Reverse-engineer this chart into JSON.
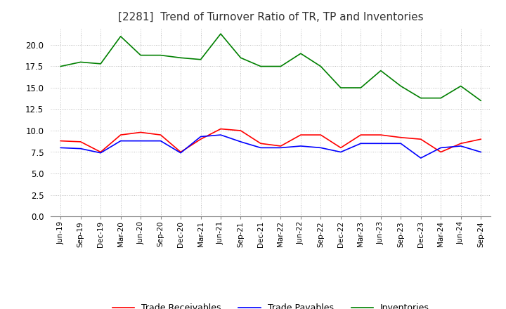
{
  "title": "[2281]  Trend of Turnover Ratio of TR, TP and Inventories",
  "yticks": [
    0.0,
    2.5,
    5.0,
    7.5,
    10.0,
    12.5,
    15.0,
    17.5,
    20.0
  ],
  "ylim": [
    0,
    22.0
  ],
  "legend_labels": [
    "Trade Receivables",
    "Trade Payables",
    "Inventories"
  ],
  "line_colors": [
    "#ff0000",
    "#0000ff",
    "#008000"
  ],
  "background_color": "#ffffff",
  "grid_color": "#aaaaaa",
  "dates": [
    "Jun-19",
    "Sep-19",
    "Dec-19",
    "Mar-20",
    "Jun-20",
    "Sep-20",
    "Dec-20",
    "Mar-21",
    "Jun-21",
    "Sep-21",
    "Dec-21",
    "Mar-22",
    "Jun-22",
    "Sep-22",
    "Dec-22",
    "Mar-23",
    "Jun-23",
    "Sep-23",
    "Dec-23",
    "Mar-24",
    "Jun-24",
    "Sep-24"
  ],
  "trade_receivables": [
    8.8,
    8.7,
    7.5,
    9.5,
    9.8,
    9.5,
    7.5,
    9.0,
    10.2,
    10.0,
    8.5,
    8.2,
    9.5,
    9.5,
    8.0,
    9.5,
    9.5,
    9.2,
    9.0,
    7.5,
    8.5,
    9.0
  ],
  "trade_payables": [
    8.0,
    7.9,
    7.4,
    8.8,
    8.8,
    8.8,
    7.4,
    9.3,
    9.5,
    8.7,
    8.0,
    8.0,
    8.2,
    8.0,
    7.5,
    8.5,
    8.5,
    8.5,
    6.8,
    8.0,
    8.2,
    7.5
  ],
  "inventories": [
    17.5,
    18.0,
    17.8,
    21.0,
    18.8,
    18.8,
    18.5,
    18.3,
    21.3,
    18.5,
    17.5,
    17.5,
    19.0,
    17.5,
    15.0,
    15.0,
    17.0,
    15.2,
    13.8,
    13.8,
    15.2,
    13.5
  ]
}
